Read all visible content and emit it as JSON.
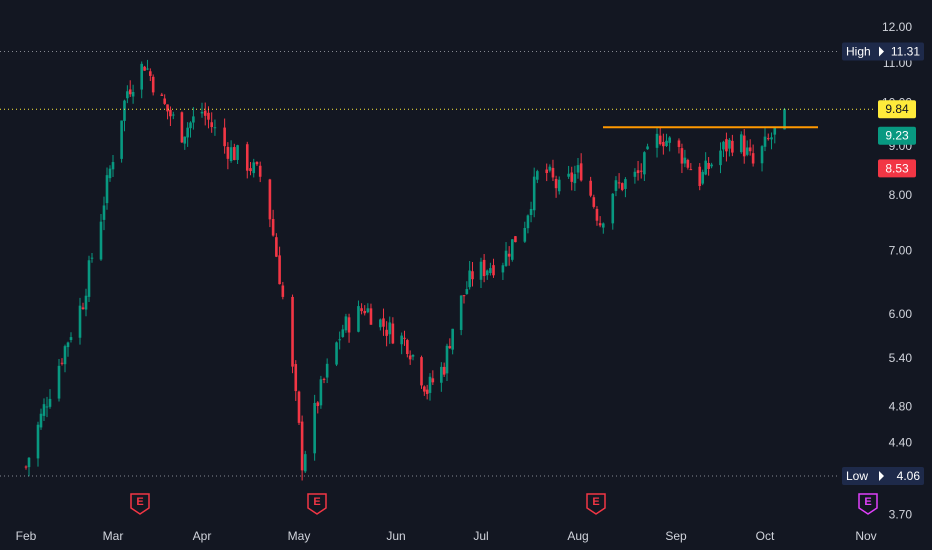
{
  "chart_data": {
    "type": "candlestick",
    "y_ticks": [
      "12.00",
      "11.00",
      "10.00",
      "9.00",
      "8.00",
      "7.00",
      "6.00",
      "5.40",
      "4.80",
      "4.40",
      "3.70"
    ],
    "y_scale": "log",
    "x_labels": [
      "Feb",
      "Mar",
      "Apr",
      "May",
      "Jun",
      "Jul",
      "Aug",
      "Sep",
      "Oct",
      "Nov"
    ],
    "high": {
      "label": "High",
      "value": "11.31"
    },
    "low": {
      "label": "Low",
      "value": "4.06"
    },
    "price_tags": [
      {
        "value": "9.84",
        "color": "#ffeb3b",
        "text_color": "#131722"
      },
      {
        "value": "9.23",
        "color": "#089981",
        "text_color": "#ffffff"
      },
      {
        "value": "8.53",
        "color": "#f23645",
        "text_color": "#ffffff"
      }
    ],
    "current_price": 9.84,
    "resistance_line": {
      "value": 9.42,
      "start_month": "Aug",
      "end_month": "Oct",
      "color": "#ff9800"
    },
    "earnings_markers": [
      {
        "label": "E",
        "month": "Mar",
        "color": "#f23645"
      },
      {
        "label": "E",
        "month": "May",
        "color": "#f23645"
      },
      {
        "label": "E",
        "month": "Aug",
        "color": "#f23645"
      },
      {
        "label": "E",
        "month": "Nov",
        "color": "#e040fb"
      }
    ],
    "colors": {
      "up": "#089981",
      "down": "#f23645",
      "background": "#131722",
      "text": "#d1d4dc"
    },
    "path": [
      [
        "2024-02-01",
        4.15
      ],
      [
        "2024-02-10",
        5.1
      ],
      [
        "2024-02-20",
        6.2
      ],
      [
        "2024-02-26",
        7.6
      ],
      [
        "2024-03-02",
        9.1
      ],
      [
        "2024-03-06",
        10.3
      ],
      [
        "2024-03-12",
        11.0
      ],
      [
        "2024-03-18",
        10.0
      ],
      [
        "2024-03-25",
        9.3
      ],
      [
        "2024-04-01",
        9.8
      ],
      [
        "2024-04-08",
        9.0
      ],
      [
        "2024-04-14",
        8.7
      ],
      [
        "2024-04-20",
        8.3
      ],
      [
        "2024-04-27",
        5.9
      ],
      [
        "2024-05-02",
        4.2
      ],
      [
        "2024-05-08",
        5.0
      ],
      [
        "2024-05-15",
        5.8
      ],
      [
        "2024-05-22",
        6.1
      ],
      [
        "2024-05-29",
        5.8
      ],
      [
        "2024-06-05",
        5.6
      ],
      [
        "2024-06-12",
        5.0
      ],
      [
        "2024-06-18",
        5.3
      ],
      [
        "2024-06-22",
        6.0
      ],
      [
        "2024-06-28",
        6.6
      ],
      [
        "2024-07-08",
        6.85
      ],
      [
        "2024-07-15",
        7.5
      ],
      [
        "2024-07-20",
        8.6
      ],
      [
        "2024-07-26",
        8.1
      ],
      [
        "2024-08-02",
        8.5
      ],
      [
        "2024-08-08",
        7.5
      ],
      [
        "2024-08-12",
        8.1
      ],
      [
        "2024-08-20",
        8.4
      ],
      [
        "2024-08-27",
        9.25
      ],
      [
        "2024-09-02",
        8.9
      ],
      [
        "2024-09-09",
        8.3
      ],
      [
        "2024-09-16",
        8.9
      ],
      [
        "2024-09-22",
        9.2
      ],
      [
        "2024-09-27",
        8.6
      ],
      [
        "2024-10-01",
        9.0
      ],
      [
        "2024-10-04",
        9.3
      ],
      [
        "2024-10-07",
        9.84
      ]
    ]
  }
}
